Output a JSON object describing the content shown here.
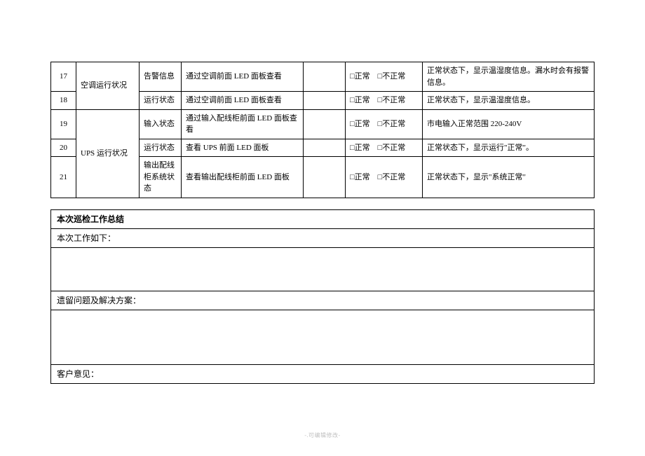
{
  "table": {
    "rows": [
      {
        "num": "17",
        "cat": "空调运行状况",
        "item": "告警信息",
        "method": "通过空调前面 LED 面板查看",
        "result": "□正常　□不正常",
        "desc": "正常状态下，显示温湿度信息。漏水时会有报警信息。"
      },
      {
        "num": "18",
        "item": "运行状态",
        "method": "通过空调前面 LED 面板查看",
        "result": "□正常　□不正常",
        "desc": "正常状态下，显示温湿度信息。"
      },
      {
        "num": "19",
        "cat": "UPS 运行状况",
        "item": "输入状态",
        "method": "通过输入配线柜前面 LED 面板查看",
        "result": "□正常　□不正常",
        "desc": "市电输入正常范围 220-240V"
      },
      {
        "num": "20",
        "item": "运行状态",
        "method": "查看 UPS 前面 LED 面板",
        "result": "□正常　□不正常",
        "desc": "正常状态下，显示运行\"正常\"。"
      },
      {
        "num": "21",
        "item": "输出配线柜系统状态",
        "method": "查看输出配线柜前面 LED 面板",
        "result": "□正常　□不正常",
        "desc": "正常状态下，显示\"系统正常\""
      }
    ]
  },
  "summary": {
    "title": "本次巡检工作总结",
    "work_label": "本次工作如下：",
    "issues_label": "遗留问题及解决方案：",
    "customer_label": "客户意见："
  },
  "footer": "-.可编辑修改-"
}
